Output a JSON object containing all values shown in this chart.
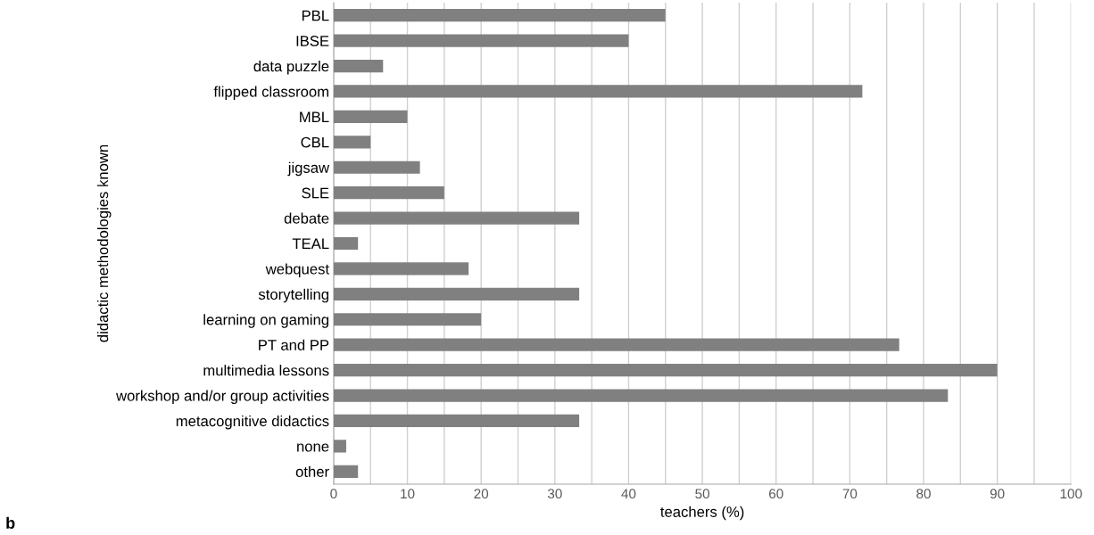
{
  "chart_data": {
    "type": "bar",
    "orientation": "horizontal",
    "xlabel": "teachers (%)",
    "ylabel": "didactic methodologies known",
    "categories": [
      "PBL",
      "IBSE",
      "data puzzle",
      "flipped classroom",
      "MBL",
      "CBL",
      "jigsaw",
      "SLE",
      "debate",
      "TEAL",
      "webquest",
      "storytelling",
      "learning on gaming",
      "PT and PP",
      "multimedia lessons",
      "workshop and/or group activities",
      "metacognitive didactics",
      "none",
      "other"
    ],
    "values": [
      45,
      40,
      6.7,
      71.7,
      10,
      5,
      11.7,
      15,
      33.3,
      3.3,
      18.3,
      33.3,
      20,
      76.7,
      90,
      83.3,
      33.3,
      1.7,
      3.3
    ],
    "color": "#808080",
    "xlim": [
      0,
      100
    ],
    "xticks": [
      0,
      {
        "value": 5,
        "label": null
      },
      10,
      {
        "value": 15,
        "label": null
      },
      20,
      {
        "value": 25,
        "label": null
      },
      30,
      {
        "value": 35,
        "label": null
      },
      40,
      {
        "value": 45,
        "label": null
      },
      50,
      {
        "value": 55,
        "label": null
      },
      60,
      {
        "value": 65,
        "label": null
      },
      70,
      {
        "value": 75,
        "label": null
      },
      80,
      {
        "value": 85,
        "label": null
      },
      90,
      {
        "value": 95,
        "label": null
      },
      100
    ],
    "grid": "x",
    "annotations": [
      "b"
    ]
  }
}
